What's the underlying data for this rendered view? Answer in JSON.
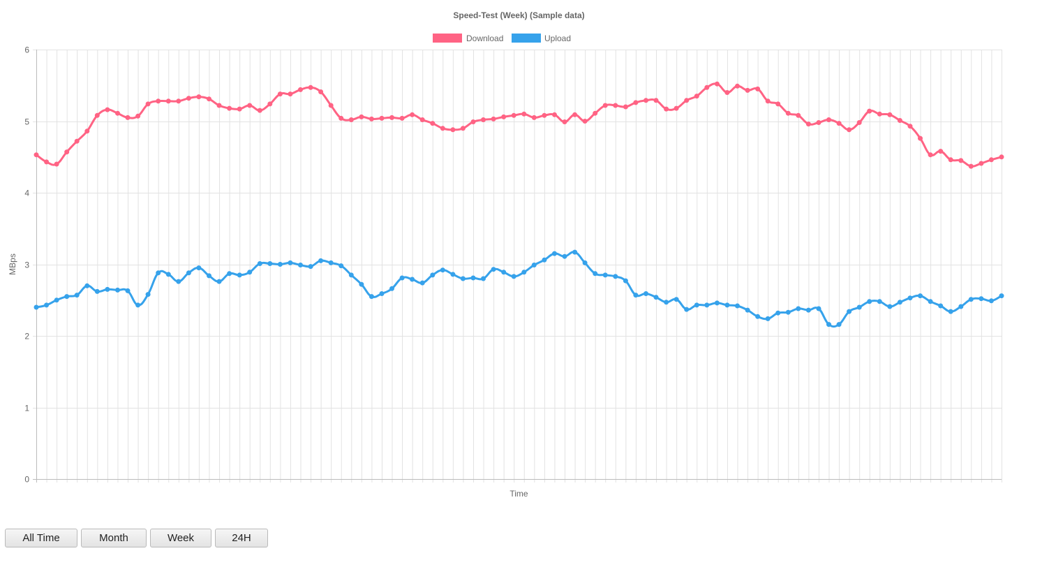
{
  "buttons": {
    "all_time": "All Time",
    "month": "Month",
    "week": "Week",
    "day": "24H"
  },
  "chart_data": {
    "type": "line",
    "title": "Speed-Test (Week) (Sample data)",
    "xlabel": "Time",
    "ylabel": "MBps",
    "ylim": [
      0,
      6
    ],
    "yticks": [
      0,
      1,
      2,
      3,
      4,
      5,
      6
    ],
    "grid": true,
    "legend_position": "top",
    "series": [
      {
        "name": "Download",
        "color": "#ff6384",
        "values": [
          4.53,
          4.43,
          4.4,
          4.57,
          4.72,
          4.86,
          5.08,
          5.16,
          5.11,
          5.05,
          5.07,
          5.24,
          5.28,
          5.28,
          5.28,
          5.32,
          5.34,
          5.31,
          5.22,
          5.18,
          5.17,
          5.22,
          5.15,
          5.24,
          5.38,
          5.38,
          5.44,
          5.47,
          5.41,
          5.22,
          5.04,
          5.02,
          5.06,
          5.03,
          5.04,
          5.05,
          5.04,
          5.09,
          5.02,
          4.97,
          4.9,
          4.88,
          4.9,
          4.99,
          5.02,
          5.03,
          5.06,
          5.08,
          5.1,
          5.05,
          5.08,
          5.09,
          4.99,
          5.09,
          5.0,
          5.11,
          5.22,
          5.22,
          5.2,
          5.26,
          5.29,
          5.29,
          5.17,
          5.18,
          5.29,
          5.35,
          5.47,
          5.52,
          5.4,
          5.49,
          5.43,
          5.45,
          5.28,
          5.24,
          5.11,
          5.08,
          4.96,
          4.98,
          5.02,
          4.97,
          4.88,
          4.98,
          5.14,
          5.1,
          5.09,
          5.01,
          4.93,
          4.76,
          4.53,
          4.58,
          4.46,
          4.45,
          4.37,
          4.41,
          4.46,
          4.5
        ]
      },
      {
        "name": "Upload",
        "color": "#36a2eb",
        "values": [
          2.4,
          2.43,
          2.5,
          2.55,
          2.57,
          2.7,
          2.62,
          2.65,
          2.64,
          2.63,
          2.43,
          2.58,
          2.88,
          2.86,
          2.76,
          2.88,
          2.95,
          2.84,
          2.76,
          2.87,
          2.85,
          2.89,
          3.01,
          3.01,
          3.0,
          3.02,
          2.99,
          2.97,
          3.05,
          3.02,
          2.98,
          2.85,
          2.72,
          2.55,
          2.59,
          2.66,
          2.81,
          2.79,
          2.74,
          2.85,
          2.92,
          2.86,
          2.8,
          2.81,
          2.8,
          2.93,
          2.89,
          2.83,
          2.89,
          2.99,
          3.06,
          3.15,
          3.11,
          3.17,
          3.02,
          2.87,
          2.85,
          2.83,
          2.77,
          2.57,
          2.59,
          2.54,
          2.47,
          2.51,
          2.37,
          2.43,
          2.43,
          2.46,
          2.43,
          2.42,
          2.36,
          2.27,
          2.24,
          2.32,
          2.33,
          2.38,
          2.36,
          2.38,
          2.16,
          2.16,
          2.34,
          2.4,
          2.48,
          2.48,
          2.41,
          2.47,
          2.53,
          2.56,
          2.48,
          2.42,
          2.34,
          2.41,
          2.51,
          2.52,
          2.49,
          2.56
        ]
      }
    ]
  }
}
